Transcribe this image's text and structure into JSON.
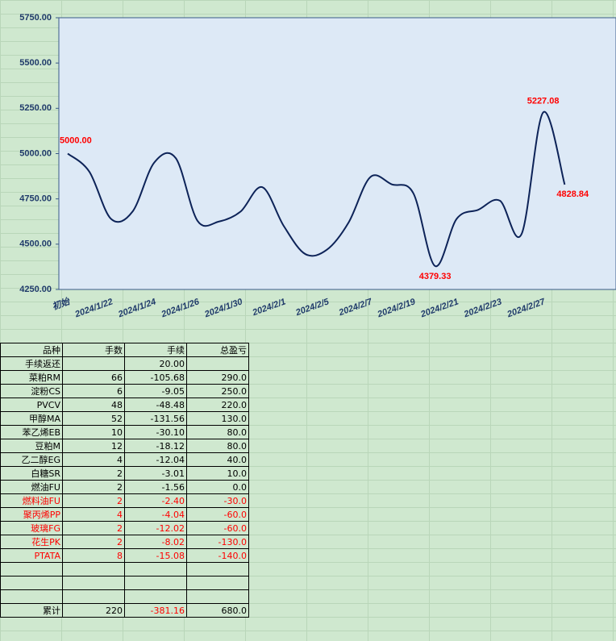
{
  "chart_data": {
    "type": "line",
    "categories": [
      "初始",
      null,
      "2024/1/22",
      null,
      "2024/1/24",
      null,
      "2024/1/26",
      null,
      "2024/1/30",
      null,
      "2024/2/1",
      null,
      "2024/2/5",
      null,
      "2024/2/7",
      null,
      "2024/2/19",
      null,
      "2024/2/21",
      null,
      "2024/2/23",
      null,
      "2024/2/27",
      null
    ],
    "values": [
      5000,
      4900,
      4640,
      4680,
      4950,
      4975,
      4630,
      4625,
      4680,
      4815,
      4600,
      4445,
      4470,
      4620,
      4870,
      4830,
      4780,
      4379.33,
      4640,
      4690,
      4740,
      4555,
      5227.08,
      4828.84
    ],
    "value_labels": [
      "5000.00",
      null,
      null,
      null,
      null,
      null,
      null,
      null,
      null,
      null,
      null,
      null,
      null,
      null,
      null,
      null,
      null,
      "4379.33",
      null,
      null,
      null,
      null,
      "5227.08",
      "4828.84"
    ],
    "color": "#0d2358",
    "label_color": "#ff0000",
    "ylim": [
      4250,
      5750
    ],
    "yticks": [
      {
        "value": 4250,
        "label": "4250.00"
      },
      {
        "value": 4500,
        "label": "4500.00"
      },
      {
        "value": 4750,
        "label": "4750.00"
      },
      {
        "value": 5000,
        "label": "5000.00"
      },
      {
        "value": 5250,
        "label": "5250.00"
      },
      {
        "value": 5500,
        "label": "5500.00"
      },
      {
        "value": 5750,
        "label": "5750.00"
      }
    ]
  },
  "table": {
    "header": [
      "品种",
      "手数",
      "手续",
      "总盈亏"
    ],
    "rows": [
      [
        "手续返还",
        null,
        "20.00",
        null
      ],
      [
        "菜粕RM",
        "66",
        "-105.68",
        "290.0"
      ],
      [
        "淀粉CS",
        "6",
        "-9.05",
        "250.0"
      ],
      [
        "PVCV",
        "48",
        "-48.48",
        "220.0"
      ],
      [
        "甲醇MA",
        "52",
        "-131.56",
        "130.0"
      ],
      [
        "苯乙烯EB",
        "10",
        "-30.10",
        "80.0"
      ],
      [
        "豆粕M",
        "12",
        "-18.12",
        "80.0"
      ],
      [
        "乙二醇EG",
        "4",
        "-12.04",
        "40.0"
      ],
      [
        "白糖SR",
        "2",
        "-3.01",
        "10.0"
      ],
      [
        "燃油FU",
        "2",
        "-1.56",
        "0.0"
      ],
      [
        "燃料油FU",
        "2",
        "-2.40",
        "-30.0"
      ],
      [
        "聚丙烯PP",
        "4",
        "-4.04",
        "-60.0"
      ],
      [
        "玻璃FG",
        "2",
        "-12.02",
        "-60.0"
      ],
      [
        "花生PK",
        "2",
        "-8.02",
        "-130.0"
      ],
      [
        "PTATA",
        "8",
        "-15.08",
        "-140.0"
      ]
    ],
    "total": [
      "累计",
      "220",
      "-381.16",
      "680.0"
    ]
  }
}
